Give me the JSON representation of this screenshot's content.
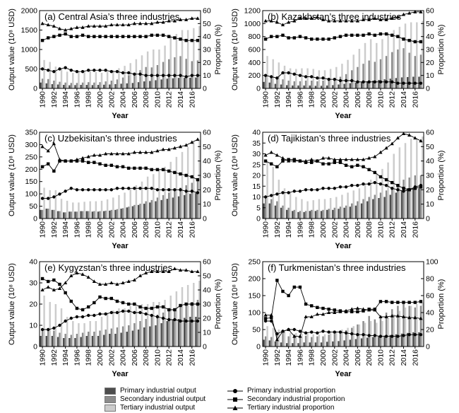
{
  "x_years": [
    1990,
    1991,
    1992,
    1993,
    1994,
    1995,
    1996,
    1997,
    1998,
    1999,
    2000,
    2001,
    2002,
    2003,
    2004,
    2005,
    2006,
    2007,
    2008,
    2009,
    2010,
    2011,
    2012,
    2013,
    2014,
    2015,
    2016,
    2017
  ],
  "tick_years": [
    "1990",
    "1992",
    "1994",
    "1996",
    "1998",
    "2000",
    "2002",
    "2004",
    "2006",
    "2008",
    "2010",
    "2012",
    "2014",
    "2016"
  ],
  "xlabel": "Year",
  "ylabel_left": "Output value (10⁸ USD)",
  "ylabel_right": "Proportion (%)",
  "colors": {
    "primary": "#4d4d4d",
    "secondary": "#8c8c8c",
    "tertiary": "#cccccc",
    "line": "#000000"
  },
  "legend": {
    "primary_output": "Primary industrial output",
    "secondary_output": "Secondary industrial output",
    "tertiary_output": "Tertiary industrial output",
    "primary_proportion": "Primary industrial proportion",
    "secondary_proportion": "Secondary industrial proportion",
    "tertiary_proportion": "Tertiary industrial proportion"
  },
  "chart_data": [
    {
      "type": "bar+line",
      "title": "(a) Central Asia’s three industries",
      "ylim_left": [
        0,
        2000
      ],
      "yticks_left": [
        0,
        500,
        1000,
        1500,
        2000
      ],
      "ylim_right": [
        0,
        60
      ],
      "yticks_right": [
        0,
        10,
        20,
        30,
        40,
        50,
        60
      ],
      "bars": {
        "primary": [
          150,
          130,
          110,
          100,
          90,
          80,
          85,
          90,
          90,
          85,
          90,
          95,
          100,
          110,
          120,
          130,
          140,
          160,
          180,
          190,
          210,
          230,
          250,
          260,
          270,
          270,
          275,
          280
        ],
        "secondary": [
          250,
          240,
          200,
          170,
          150,
          140,
          140,
          150,
          160,
          150,
          160,
          180,
          200,
          230,
          280,
          340,
          400,
          470,
          550,
          540,
          600,
          680,
          750,
          800,
          830,
          760,
          700,
          720
        ],
        "tertiary": [
          730,
          680,
          560,
          500,
          430,
          400,
          420,
          430,
          450,
          420,
          400,
          430,
          470,
          520,
          580,
          650,
          750,
          850,
          950,
          1000,
          1000,
          1100,
          1300,
          1400,
          1500,
          1500,
          1550,
          1600
        ]
      },
      "lines": {
        "primary": [
          15,
          14,
          13,
          15,
          16,
          14,
          13,
          13,
          14,
          14,
          14,
          14,
          13,
          13,
          12,
          12,
          11,
          11,
          10,
          10,
          10,
          10,
          10,
          10,
          10,
          9,
          10,
          10
        ],
        "secondary": [
          37,
          39,
          40,
          41,
          42,
          40,
          40,
          41,
          40,
          40,
          40,
          40,
          40,
          40,
          40,
          40,
          40,
          40,
          40,
          41,
          41,
          41,
          40,
          39,
          38,
          37,
          37,
          37
        ],
        "tertiary": [
          50,
          49,
          48,
          46,
          45,
          46,
          47,
          47,
          48,
          48,
          48,
          48,
          49,
          49,
          49,
          49,
          50,
          50,
          50,
          50,
          51,
          51,
          52,
          52,
          53,
          53,
          54,
          54
        ]
      }
    },
    {
      "type": "bar+line",
      "title": "(b) Kazakhstan’s three industries",
      "ylim_left": [
        0,
        1200
      ],
      "yticks_left": [
        0,
        200,
        400,
        600,
        800,
        1000,
        1200
      ],
      "ylim_right": [
        0,
        60
      ],
      "yticks_right": [
        0,
        10,
        20,
        30,
        40,
        50,
        60
      ],
      "bars": {
        "primary": [
          100,
          90,
          70,
          60,
          50,
          45,
          45,
          45,
          45,
          40,
          40,
          45,
          50,
          60,
          70,
          80,
          90,
          100,
          110,
          120,
          130,
          140,
          150,
          160,
          170,
          175,
          180,
          180
        ],
        "secondary": [
          200,
          190,
          160,
          140,
          120,
          110,
          110,
          120,
          120,
          110,
          120,
          130,
          150,
          180,
          220,
          280,
          330,
          380,
          430,
          410,
          450,
          500,
          560,
          600,
          620,
          550,
          500,
          520
        ],
        "tertiary": [
          500,
          450,
          400,
          350,
          310,
          300,
          310,
          310,
          300,
          280,
          280,
          300,
          330,
          380,
          440,
          520,
          610,
          700,
          760,
          700,
          760,
          850,
          900,
          950,
          1000,
          1020,
          1020,
          1040
        ]
      },
      "lines": {
        "primary": [
          10,
          9,
          8,
          12,
          12,
          11,
          10,
          9,
          9,
          8,
          8,
          7,
          7,
          6,
          6,
          6,
          5,
          5,
          5,
          5,
          5,
          5,
          5,
          4,
          4,
          4,
          4,
          4
        ],
        "secondary": [
          38,
          40,
          40,
          41,
          39,
          39,
          40,
          39,
          38,
          38,
          38,
          38,
          39,
          40,
          41,
          41,
          41,
          41,
          42,
          41,
          42,
          42,
          41,
          40,
          38,
          37,
          36,
          36
        ],
        "tertiary": [
          52,
          52,
          51,
          49,
          51,
          52,
          54,
          54,
          54,
          55,
          53,
          52,
          52,
          52,
          52,
          52,
          52,
          53,
          53,
          54,
          53,
          53,
          54,
          55,
          57,
          58,
          59,
          59
        ]
      }
    },
    {
      "type": "bar+line",
      "title": "(c) Uzbekisitan’s three industries",
      "ylim_left": [
        0,
        350
      ],
      "yticks_left": [
        0,
        50,
        100,
        150,
        200,
        250,
        300,
        350
      ],
      "ylim_right": [
        0,
        60
      ],
      "yticks_right": [
        0,
        10,
        20,
        30,
        40,
        50,
        60
      ],
      "bars": {
        "primary": [
          35,
          40,
          35,
          30,
          25,
          28,
          28,
          30,
          30,
          28,
          28,
          30,
          32,
          35,
          40,
          45,
          50,
          55,
          60,
          65,
          70,
          75,
          80,
          85,
          90,
          95,
          100,
          105
        ],
        "secondary": [
          35,
          40,
          35,
          30,
          25,
          28,
          28,
          30,
          30,
          30,
          30,
          32,
          35,
          38,
          42,
          48,
          55,
          60,
          70,
          75,
          85,
          95,
          105,
          115,
          125,
          135,
          145,
          155
        ],
        "tertiary": [
          125,
          115,
          115,
          80,
          72,
          65,
          65,
          68,
          70,
          70,
          72,
          78,
          85,
          95,
          105,
          120,
          135,
          150,
          170,
          180,
          195,
          210,
          230,
          250,
          270,
          290,
          310,
          320
        ]
      },
      "lines": {
        "primary": [
          14,
          14,
          15,
          17,
          19,
          21,
          20,
          20,
          20,
          20,
          20,
          20,
          20,
          21,
          21,
          21,
          21,
          21,
          21,
          21,
          20,
          20,
          20,
          20,
          20,
          19,
          19,
          18
        ],
        "secondary": [
          36,
          38,
          33,
          40,
          40,
          40,
          40,
          40,
          39,
          39,
          38,
          37,
          37,
          36,
          36,
          35,
          35,
          35,
          35,
          34,
          34,
          34,
          33,
          32,
          31,
          30,
          29,
          27
        ],
        "tertiary": [
          50,
          47,
          52,
          41,
          40,
          40,
          41,
          42,
          43,
          44,
          44,
          45,
          45,
          45,
          45,
          45,
          46,
          46,
          46,
          46,
          47,
          48,
          48,
          49,
          50,
          51,
          53,
          55
        ]
      }
    },
    {
      "type": "bar+line",
      "title": "(d) Tajikistan’s three industries",
      "ylim_left": [
        0,
        40
      ],
      "yticks_left": [
        0,
        5,
        10,
        15,
        20,
        25,
        30,
        35,
        40
      ],
      "ylim_right": [
        0,
        60
      ],
      "yticks_right": [
        0,
        10,
        20,
        30,
        40,
        50,
        60
      ],
      "bars": {
        "primary": [
          7,
          7,
          6,
          5,
          4,
          3.5,
          3,
          3,
          3.5,
          3.5,
          3.5,
          4,
          4,
          4.5,
          5,
          5.5,
          6,
          7,
          8,
          9,
          9.5,
          10,
          11,
          12,
          13,
          14,
          14,
          14
        ],
        "secondary": [
          10,
          9,
          8,
          6,
          5,
          4,
          3.5,
          3.5,
          4,
          4,
          4,
          4.5,
          5,
          5.5,
          6,
          7,
          8,
          9,
          10,
          11,
          12,
          13,
          14,
          16,
          18,
          19,
          20,
          20
        ],
        "tertiary": [
          26,
          24,
          18,
          14,
          12,
          10,
          9,
          8,
          8.5,
          9,
          9,
          9.5,
          10,
          11,
          12,
          13,
          14,
          16,
          18,
          21,
          23,
          26,
          30,
          33,
          35,
          37,
          37,
          38
        ]
      },
      "lines": {
        "primary": [
          15,
          16,
          17,
          18,
          18,
          19,
          19,
          20,
          20,
          20,
          21,
          21,
          21,
          22,
          22,
          23,
          23,
          24,
          24,
          25,
          24,
          23,
          21,
          20,
          19,
          20,
          22,
          23
        ],
        "secondary": [
          40,
          38,
          36,
          40,
          41,
          41,
          40,
          39,
          39,
          40,
          38,
          38,
          39,
          39,
          37,
          36,
          37,
          36,
          34,
          32,
          29,
          27,
          25,
          23,
          21,
          20,
          21,
          22
        ],
        "tertiary": [
          44,
          46,
          44,
          42,
          40,
          40,
          40,
          40,
          41,
          40,
          42,
          42,
          41,
          41,
          41,
          41,
          41,
          41,
          42,
          43,
          46,
          49,
          52,
          56,
          59,
          58,
          56,
          54
        ]
      }
    },
    {
      "type": "bar+line",
      "title": "(e) Kygyzstan’s three industries",
      "ylim_left": [
        0,
        40
      ],
      "yticks_left": [
        0,
        10,
        20,
        30,
        40
      ],
      "ylim_right": [
        0,
        60
      ],
      "yticks_right": [
        0,
        10,
        20,
        30,
        40,
        50,
        60
      ],
      "bars": {
        "primary": [
          5,
          5,
          5,
          4.5,
          4,
          4,
          4,
          4.5,
          5,
          5,
          5,
          5.5,
          6,
          6,
          6.5,
          7,
          7.5,
          8,
          9,
          9.5,
          10,
          11,
          12,
          12.5,
          13,
          13.5,
          14,
          14
        ],
        "secondary": [
          8,
          8,
          7.5,
          6.5,
          6,
          5.5,
          6,
          6.5,
          7,
          7,
          7.5,
          8,
          8.5,
          9,
          9.5,
          10,
          11,
          12,
          13,
          14,
          15,
          16,
          17,
          18,
          19,
          20,
          21,
          22
        ],
        "tertiary": [
          24,
          21,
          20,
          18,
          14,
          12,
          11,
          11,
          12,
          12,
          14,
          16,
          17,
          18,
          18,
          19,
          19,
          20,
          20,
          21,
          21,
          22,
          24,
          26,
          28,
          29,
          30,
          31
        ]
      },
      "lines": {
        "primary": [
          12,
          12,
          13,
          15,
          18,
          20,
          21,
          21,
          22,
          22,
          23,
          23,
          24,
          24,
          25,
          25,
          24,
          24,
          23,
          22,
          21,
          20,
          19,
          19,
          18,
          18,
          18,
          18
        ],
        "secondary": [
          48,
          46,
          47,
          44,
          38,
          32,
          27,
          26,
          28,
          31,
          35,
          34,
          34,
          32,
          31,
          30,
          30,
          28,
          27,
          27,
          28,
          28,
          26,
          26,
          29,
          30,
          30,
          30
        ],
        "tertiary": [
          40,
          42,
          40,
          41,
          45,
          50,
          52,
          51,
          49,
          46,
          44,
          44,
          45,
          44,
          45,
          46,
          47,
          50,
          52,
          53,
          53,
          53,
          53,
          55,
          54,
          54,
          53,
          53
        ]
      }
    },
    {
      "type": "bar+line",
      "title": "(f) Turkmenistan’s three industries",
      "ylim_left": [
        0,
        250
      ],
      "yticks_left": [
        0,
        50,
        100,
        150,
        200,
        250
      ],
      "ylim_right": [
        0,
        100
      ],
      "yticks_right": [
        0,
        20,
        40,
        60,
        80,
        100
      ],
      "bars": {
        "primary": [
          20,
          18,
          15,
          12,
          10,
          10,
          10,
          12,
          12,
          12,
          12,
          14,
          15,
          16,
          18,
          20,
          22,
          24,
          26,
          28,
          30,
          32,
          34,
          36,
          38,
          40,
          42,
          42
        ],
        "secondary": [
          30,
          28,
          35,
          40,
          30,
          35,
          30,
          32,
          28,
          30,
          30,
          35,
          38,
          42,
          48,
          55,
          65,
          75,
          90,
          80,
          90,
          100,
          110,
          120,
          125,
          120,
          115,
          120
        ],
        "tertiary": [
          60,
          55,
          50,
          45,
          40,
          40,
          38,
          38,
          36,
          35,
          36,
          40,
          45,
          50,
          55,
          60,
          65,
          70,
          75,
          70,
          75,
          85,
          95,
          105,
          115,
          120,
          125,
          130
        ]
      },
      "lines": {
        "primary": [
          30,
          30,
          15,
          18,
          20,
          20,
          18,
          16,
          17,
          16,
          18,
          17,
          17,
          17,
          16,
          15,
          14,
          14,
          13,
          13,
          12,
          12,
          12,
          12,
          13,
          14,
          14,
          14
        ],
        "secondary": [
          33,
          34,
          78,
          65,
          60,
          70,
          70,
          50,
          48,
          46,
          45,
          44,
          43,
          42,
          41,
          41,
          41,
          42,
          44,
          44,
          53,
          53,
          52,
          52,
          52,
          52,
          52,
          53
        ],
        "tertiary": [
          37,
          37,
          8,
          18,
          20,
          12,
          12,
          35,
          35,
          38,
          38,
          40,
          40,
          41,
          42,
          44,
          45,
          44,
          43,
          43,
          35,
          35,
          36,
          36,
          35,
          34,
          34,
          33
        ]
      }
    }
  ]
}
